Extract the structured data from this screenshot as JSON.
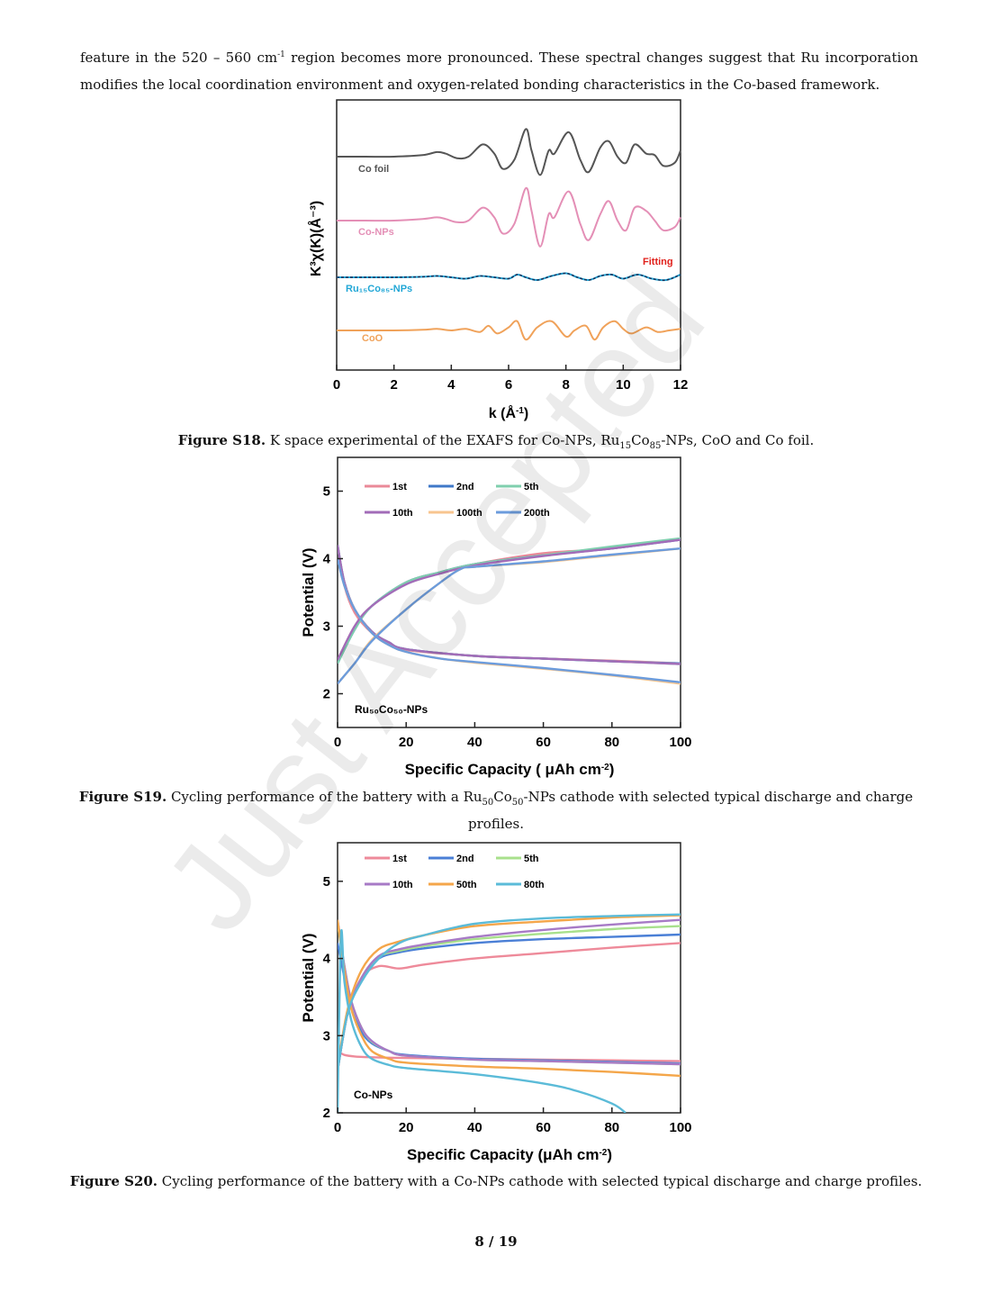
{
  "paragraph": {
    "part1": "feature in the 520 – 560 cm",
    "sup": "-1",
    "part2": " region becomes more pronounced. These spectral changes suggest that Ru incorporation modifies the local coordination environment and oxygen-related bonding characteristics in the Co-based framework."
  },
  "figures": [
    {
      "label": "Figure S18.",
      "caption_pre": " K space experimental of the EXAFS for Co-NPs, Ru",
      "sub1": "15",
      "caption_mid": "Co",
      "sub2": "85",
      "caption_post": "-NPs, CoO and Co foil."
    },
    {
      "label": "Figure S19.",
      "caption_pre": " Cycling performance of the battery with a Ru",
      "sub1": "50",
      "caption_mid": "Co",
      "sub2": "50",
      "caption_post": "-NPs cathode with selected typical discharge and charge profiles."
    },
    {
      "label": "Figure S20.",
      "caption": " Cycling performance of the battery with a Co-NPs cathode with selected typical discharge and charge profiles."
    }
  ],
  "page_number": "8 / 19",
  "watermark": "Just Accepted",
  "chart_data": [
    {
      "type": "line",
      "xlabel": "k (Å",
      "xlabel_sup": "-1",
      "xlabel_end": ")",
      "ylabel": "K³χ(K)(Å⁻³)",
      "xlim": [
        0,
        12
      ],
      "xticks": [
        "0",
        "2",
        "4",
        "6",
        "8",
        "10",
        "12"
      ],
      "yticks": [],
      "series_labels": [
        {
          "name": "Co foil",
          "color": "#555555"
        },
        {
          "name": "Co-NPs",
          "color": "#e48fb6"
        },
        {
          "name": "Ru₁₅Co₈₅-NPs",
          "color": "#22a7d6"
        },
        {
          "name": "CoO",
          "color": "#f0a25a"
        }
      ],
      "annotation": {
        "text": "Fitting",
        "color": "#e0201b"
      },
      "series": [
        {
          "name": "Co foil",
          "x": [
            0,
            1,
            2,
            3,
            3.5,
            3.8,
            4.2,
            4.6,
            5.1,
            5.5,
            5.8,
            6.2,
            6.6,
            6.8,
            7.1,
            7.4,
            7.6,
            8.1,
            8.5,
            8.8,
            9.2,
            9.5,
            9.8,
            10.1,
            10.4,
            10.8,
            11.1,
            11.4,
            11.8,
            12
          ],
          "y": [
            0,
            0,
            0,
            0.05,
            0.15,
            0.1,
            -0.05,
            0,
            0.4,
            0.1,
            -0.4,
            -0.1,
            0.9,
            0.2,
            -0.6,
            0.2,
            0.1,
            0.8,
            -0.1,
            -0.5,
            0.3,
            0.5,
            0.0,
            -0.2,
            0.4,
            0.1,
            0.05,
            -0.3,
            -0.2,
            0.2
          ]
        },
        {
          "name": "Co-NPs",
          "x": [
            0,
            1,
            2,
            3,
            3.5,
            3.8,
            4.2,
            4.6,
            5.1,
            5.5,
            5.8,
            6.2,
            6.6,
            6.8,
            7.1,
            7.4,
            7.6,
            8.1,
            8.5,
            8.8,
            9.2,
            9.5,
            9.8,
            10.1,
            10.4,
            10.8,
            11.1,
            11.4,
            11.8,
            12
          ],
          "y": [
            0,
            0,
            0,
            0.05,
            0.1,
            0.05,
            -0.05,
            0,
            0.4,
            0.1,
            -0.4,
            -0.1,
            1.0,
            0.3,
            -0.8,
            0.2,
            0.1,
            0.9,
            -0.1,
            -0.6,
            0.2,
            0.6,
            0.0,
            -0.3,
            0.4,
            0.3,
            0.0,
            -0.3,
            -0.2,
            0.1
          ]
        },
        {
          "name": "Ru₁₅Co₈₅-NPs",
          "x": [
            0,
            1,
            2,
            3,
            3.5,
            4,
            4.5,
            5,
            5.5,
            6,
            6.3,
            6.6,
            7,
            7.5,
            8,
            8.4,
            8.8,
            9.2,
            9.6,
            10,
            10.5,
            11,
            11.5,
            12
          ],
          "y": [
            0,
            0,
            0,
            0.02,
            0.05,
            0,
            -0.05,
            0.05,
            0,
            -0.05,
            0.1,
            0.0,
            -0.1,
            0.05,
            0.15,
            0.0,
            -0.1,
            0.05,
            0.1,
            -0.05,
            0.1,
            -0.05,
            -0.1,
            0.1
          ]
        },
        {
          "name": "CoO",
          "x": [
            0,
            1,
            2,
            3,
            3.5,
            4,
            4.5,
            5,
            5.3,
            5.6,
            6,
            6.3,
            6.6,
            7,
            7.5,
            8,
            8.3,
            8.7,
            9,
            9.3,
            9.7,
            10,
            10.3,
            10.8,
            11.2,
            11.6,
            12
          ],
          "y": [
            0,
            0,
            0,
            0.02,
            0.05,
            0,
            0.05,
            -0.05,
            0.15,
            -0.1,
            0.1,
            0.3,
            -0.3,
            0.1,
            0.3,
            -0.2,
            0.0,
            0.15,
            -0.3,
            0.1,
            0.3,
            0.05,
            -0.1,
            0.1,
            -0.05,
            0,
            0.05
          ]
        }
      ]
    },
    {
      "type": "line",
      "xlabel": "Specific Capacity ( μAh cm",
      "xlabel_sup": "-2",
      "xlabel_end": ")",
      "ylabel": "Potential (V)",
      "xlim": [
        0,
        100
      ],
      "ylim": [
        1.5,
        5.5
      ],
      "xticks": [
        0,
        20,
        40,
        60,
        80,
        100
      ],
      "yticks": [
        2,
        3,
        4,
        5
      ],
      "inset_label": "Ru₅₀Co₅₀-NPs",
      "legend": [
        {
          "name": "1st",
          "color": "#ea8a98"
        },
        {
          "name": "2nd",
          "color": "#3f78c8"
        },
        {
          "name": "5th",
          "color": "#7fcfae"
        },
        {
          "name": "10th",
          "color": "#a26cb8"
        },
        {
          "name": "100th",
          "color": "#f8c58f"
        },
        {
          "name": "200th",
          "color": "#6c9cdc"
        }
      ],
      "series": [
        {
          "name": "1st charge",
          "x": [
            0,
            5,
            10,
            20,
            30,
            40,
            60,
            80,
            100
          ],
          "y": [
            2.5,
            3.0,
            3.3,
            3.65,
            3.8,
            3.92,
            4.08,
            4.15,
            4.3
          ]
        },
        {
          "name": "1st discharge",
          "x": [
            0,
            2,
            5,
            10,
            15,
            20,
            40,
            60,
            80,
            100
          ],
          "y": [
            4.2,
            3.6,
            3.2,
            2.9,
            2.75,
            2.65,
            2.56,
            2.52,
            2.49,
            2.45
          ]
        },
        {
          "name": "2nd charge",
          "x": [
            0,
            5,
            10,
            20,
            30,
            40,
            60,
            80,
            100
          ],
          "y": [
            2.45,
            2.95,
            3.3,
            3.65,
            3.8,
            3.92,
            4.05,
            4.15,
            4.28
          ]
        },
        {
          "name": "2nd discharge",
          "x": [
            0,
            2,
            5,
            10,
            15,
            20,
            40,
            60,
            80,
            100
          ],
          "y": [
            4.2,
            3.65,
            3.25,
            2.92,
            2.76,
            2.66,
            2.56,
            2.52,
            2.48,
            2.45
          ]
        },
        {
          "name": "5th charge",
          "x": [
            0,
            5,
            10,
            20,
            30,
            40,
            60,
            80,
            100
          ],
          "y": [
            2.45,
            2.95,
            3.3,
            3.65,
            3.8,
            3.92,
            4.05,
            4.18,
            4.3
          ]
        },
        {
          "name": "5th discharge",
          "x": [
            0,
            2,
            5,
            10,
            15,
            20,
            40,
            60,
            80,
            100
          ],
          "y": [
            4.2,
            3.65,
            3.25,
            2.92,
            2.76,
            2.66,
            2.56,
            2.52,
            2.48,
            2.44
          ]
        },
        {
          "name": "10th charge",
          "x": [
            0,
            5,
            10,
            20,
            30,
            40,
            60,
            80,
            100
          ],
          "y": [
            2.5,
            3.0,
            3.3,
            3.62,
            3.78,
            3.9,
            4.04,
            4.15,
            4.28
          ]
        },
        {
          "name": "10th discharge",
          "x": [
            0,
            2,
            5,
            10,
            15,
            20,
            40,
            60,
            80,
            100
          ],
          "y": [
            4.2,
            3.65,
            3.25,
            2.92,
            2.76,
            2.66,
            2.56,
            2.52,
            2.48,
            2.44
          ]
        },
        {
          "name": "100th charge",
          "x": [
            0,
            5,
            10,
            20,
            30,
            36,
            40,
            60,
            80,
            100
          ],
          "y": [
            2.15,
            2.45,
            2.8,
            3.25,
            3.65,
            3.85,
            3.88,
            3.95,
            4.05,
            4.15
          ]
        },
        {
          "name": "100th discharge",
          "x": [
            0,
            2,
            5,
            10,
            15,
            20,
            30,
            40,
            60,
            80,
            100
          ],
          "y": [
            4.0,
            3.6,
            3.25,
            2.9,
            2.72,
            2.62,
            2.52,
            2.46,
            2.37,
            2.27,
            2.15
          ]
        },
        {
          "name": "200th charge",
          "x": [
            0,
            5,
            10,
            20,
            30,
            36,
            40,
            60,
            80,
            100
          ],
          "y": [
            2.15,
            2.45,
            2.78,
            3.25,
            3.65,
            3.85,
            3.88,
            3.96,
            4.06,
            4.15
          ]
        },
        {
          "name": "200th discharge",
          "x": [
            0,
            2,
            5,
            10,
            15,
            20,
            30,
            40,
            60,
            80,
            100
          ],
          "y": [
            4.0,
            3.6,
            3.25,
            2.9,
            2.72,
            2.62,
            2.52,
            2.47,
            2.38,
            2.28,
            2.17
          ]
        }
      ]
    },
    {
      "type": "line",
      "xlabel": "Specific Capacity (μAh cm",
      "xlabel_sup": "-2",
      "xlabel_end": ")",
      "ylabel": "Potential (V)",
      "xlim": [
        0,
        100
      ],
      "ylim": [
        2,
        5.5
      ],
      "xticks": [
        0,
        20,
        40,
        60,
        80,
        100
      ],
      "yticks": [
        2,
        3,
        4,
        5
      ],
      "inset_label": "Co-NPs",
      "legend": [
        {
          "name": "1st",
          "color": "#ee8a9a"
        },
        {
          "name": "2nd",
          "color": "#4a7fd6"
        },
        {
          "name": "5th",
          "color": "#a8e08c"
        },
        {
          "name": "10th",
          "color": "#a77ac6"
        },
        {
          "name": "50th",
          "color": "#f4a64a"
        },
        {
          "name": "80th",
          "color": "#5bbbd8"
        }
      ],
      "series": [
        {
          "name": "1st charge",
          "x": [
            0,
            3,
            7,
            12,
            18,
            25,
            40,
            60,
            80,
            100
          ],
          "y": [
            2.55,
            3.3,
            3.75,
            3.9,
            3.87,
            3.92,
            4.0,
            4.07,
            4.14,
            4.2
          ]
        },
        {
          "name": "1st discharge",
          "x": [
            0,
            2,
            5,
            10,
            20,
            40,
            60,
            80,
            100
          ],
          "y": [
            2.8,
            2.75,
            2.73,
            2.72,
            2.71,
            2.7,
            2.69,
            2.68,
            2.67
          ]
        },
        {
          "name": "2nd charge",
          "x": [
            0,
            3,
            7,
            12,
            18,
            25,
            40,
            60,
            80,
            100
          ],
          "y": [
            2.55,
            3.3,
            3.75,
            4.0,
            4.08,
            4.13,
            4.2,
            4.25,
            4.28,
            4.31
          ]
        },
        {
          "name": "2nd discharge",
          "x": [
            0,
            2,
            4,
            7,
            10,
            15,
            20,
            40,
            60,
            80,
            100
          ],
          "y": [
            4.2,
            3.75,
            3.35,
            3.05,
            2.9,
            2.8,
            2.75,
            2.7,
            2.68,
            2.66,
            2.64
          ]
        },
        {
          "name": "5th charge",
          "x": [
            0,
            3,
            7,
            12,
            18,
            25,
            40,
            60,
            80,
            100
          ],
          "y": [
            2.55,
            3.3,
            3.75,
            4.02,
            4.1,
            4.16,
            4.25,
            4.32,
            4.38,
            4.42
          ]
        },
        {
          "name": "5th discharge",
          "x": [
            0,
            2,
            4,
            7,
            10,
            15,
            20,
            40,
            60,
            80,
            100
          ],
          "y": [
            4.45,
            3.9,
            3.45,
            3.1,
            2.92,
            2.8,
            2.74,
            2.69,
            2.67,
            2.65,
            2.63
          ]
        },
        {
          "name": "10th charge",
          "x": [
            0,
            3,
            7,
            12,
            18,
            25,
            40,
            60,
            80,
            100
          ],
          "y": [
            2.55,
            3.3,
            3.75,
            4.03,
            4.12,
            4.18,
            4.28,
            4.37,
            4.44,
            4.5
          ]
        },
        {
          "name": "10th discharge",
          "x": [
            0,
            2,
            4,
            7,
            10,
            15,
            20,
            40,
            60,
            80,
            100
          ],
          "y": [
            4.5,
            3.9,
            3.45,
            3.1,
            2.93,
            2.8,
            2.74,
            2.69,
            2.67,
            2.65,
            2.63
          ]
        },
        {
          "name": "50th charge",
          "x": [
            0,
            3,
            7,
            12,
            18,
            25,
            40,
            60,
            80,
            100
          ],
          "y": [
            2.6,
            3.35,
            3.85,
            4.12,
            4.22,
            4.3,
            4.42,
            4.48,
            4.53,
            4.56
          ]
        },
        {
          "name": "50th discharge",
          "x": [
            0,
            2,
            4,
            7,
            10,
            15,
            20,
            40,
            60,
            80,
            100
          ],
          "y": [
            4.5,
            3.85,
            3.35,
            3.0,
            2.8,
            2.7,
            2.65,
            2.6,
            2.57,
            2.53,
            2.48
          ]
        },
        {
          "name": "80th charge",
          "x": [
            0,
            3,
            7,
            12,
            18,
            25,
            40,
            60,
            80,
            100
          ],
          "y": [
            2.55,
            3.3,
            3.7,
            4.0,
            4.2,
            4.3,
            4.45,
            4.52,
            4.55,
            4.57
          ]
        },
        {
          "name": "80th discharge",
          "x": [
            0,
            1,
            2,
            4,
            7,
            10,
            15,
            20,
            40,
            60,
            70,
            80,
            84
          ],
          "y": [
            2.0,
            4.3,
            3.7,
            3.2,
            2.85,
            2.7,
            2.62,
            2.58,
            2.5,
            2.38,
            2.28,
            2.12,
            2.0
          ]
        }
      ]
    }
  ]
}
